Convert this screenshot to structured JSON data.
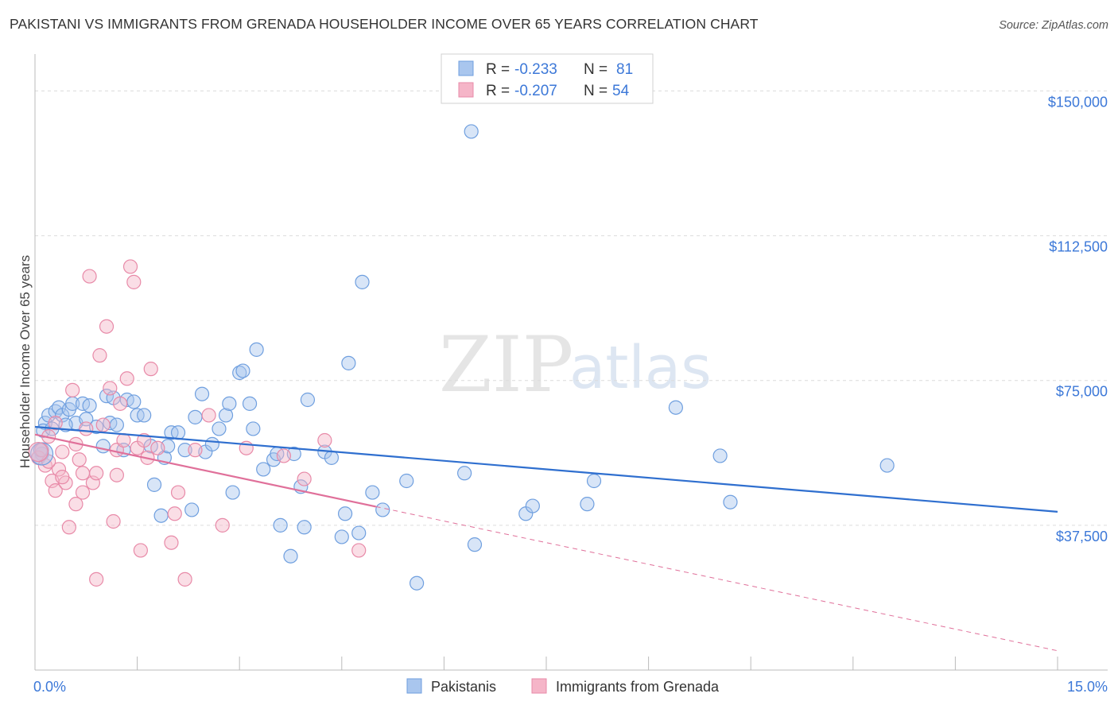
{
  "title": "PAKISTANI VS IMMIGRANTS FROM GRENADA HOUSEHOLDER INCOME OVER 65 YEARS CORRELATION CHART",
  "source": "Source: ZipAtlas.com",
  "watermark": {
    "zip": "ZIP",
    "atlas": "atlas"
  },
  "legend_box": {
    "rows": [
      {
        "r_label": "R =",
        "r_value": "-0.233",
        "n_label": "N =",
        "n_value": "81",
        "color": "#a9c6ee"
      },
      {
        "r_label": "R =",
        "r_value": "-0.207",
        "n_label": "N =",
        "n_value": "54",
        "color": "#f5b5c8"
      }
    ]
  },
  "bottom_legend": [
    {
      "label": "Pakistanis",
      "color": "#a9c6ee"
    },
    {
      "label": "Immigrants from Grenada",
      "color": "#f5b5c8"
    }
  ],
  "chart_data": {
    "type": "scatter",
    "xlabel": "",
    "ylabel": "Householder Income Over 65 years",
    "xlim": [
      0,
      15
    ],
    "ylim": [
      0,
      157500
    ],
    "x_tick_labels": [
      "0.0%",
      "15.0%"
    ],
    "y_ticks": [
      37500,
      75000,
      112500,
      150000
    ],
    "y_tick_labels": [
      "$37,500",
      "$75,000",
      "$112,500",
      "$150,000"
    ],
    "series": [
      {
        "name": "Pakistanis",
        "color": "#a9c6ee",
        "stroke": "#6f9fdf",
        "trend": {
          "x0": 0,
          "y0": 63000,
          "x1": 15,
          "y1": 41000,
          "color": "#2f6fcf",
          "dashed_from": null
        },
        "points": [
          [
            0.1,
            56000
          ],
          [
            0.15,
            64000
          ],
          [
            0.2,
            66000
          ],
          [
            0.3,
            67000
          ],
          [
            0.35,
            68000
          ],
          [
            0.4,
            66000
          ],
          [
            0.5,
            67500
          ],
          [
            0.55,
            69000
          ],
          [
            0.6,
            64000
          ],
          [
            0.7,
            69000
          ],
          [
            0.75,
            65000
          ],
          [
            0.8,
            68500
          ],
          [
            0.9,
            63000
          ],
          [
            1.0,
            58000
          ],
          [
            1.05,
            71000
          ],
          [
            1.1,
            64000
          ],
          [
            1.2,
            63500
          ],
          [
            1.3,
            57000
          ],
          [
            1.35,
            70000
          ],
          [
            1.45,
            69500
          ],
          [
            1.5,
            66000
          ],
          [
            1.6,
            66000
          ],
          [
            1.7,
            58000
          ],
          [
            1.75,
            48000
          ],
          [
            1.85,
            40000
          ],
          [
            1.9,
            55000
          ],
          [
            1.95,
            58000
          ],
          [
            2.0,
            61500
          ],
          [
            2.1,
            61500
          ],
          [
            2.2,
            57000
          ],
          [
            2.3,
            41500
          ],
          [
            2.35,
            65500
          ],
          [
            2.5,
            56500
          ],
          [
            2.6,
            58500
          ],
          [
            2.7,
            62500
          ],
          [
            2.8,
            66000
          ],
          [
            2.85,
            69000
          ],
          [
            2.9,
            46000
          ],
          [
            3.0,
            77000
          ],
          [
            3.05,
            77500
          ],
          [
            3.15,
            69000
          ],
          [
            3.2,
            62500
          ],
          [
            3.25,
            83000
          ],
          [
            3.35,
            52000
          ],
          [
            3.5,
            54500
          ],
          [
            3.55,
            56000
          ],
          [
            3.6,
            37500
          ],
          [
            3.75,
            29500
          ],
          [
            3.8,
            56000
          ],
          [
            3.9,
            47500
          ],
          [
            3.95,
            37000
          ],
          [
            4.0,
            70000
          ],
          [
            4.25,
            56500
          ],
          [
            4.35,
            55000
          ],
          [
            4.5,
            34500
          ],
          [
            4.55,
            40500
          ],
          [
            4.6,
            79500
          ],
          [
            4.75,
            35500
          ],
          [
            4.8,
            100500
          ],
          [
            4.95,
            46000
          ],
          [
            5.1,
            41500
          ],
          [
            5.45,
            49000
          ],
          [
            5.6,
            22500
          ],
          [
            6.3,
            51000
          ],
          [
            6.4,
            139500
          ],
          [
            6.45,
            32500
          ],
          [
            7.2,
            40500
          ],
          [
            7.3,
            42500
          ],
          [
            8.1,
            43000
          ],
          [
            8.2,
            49000
          ],
          [
            9.4,
            68000
          ],
          [
            10.05,
            55500
          ],
          [
            10.2,
            43500
          ],
          [
            12.5,
            53000
          ],
          [
            0.05,
            55000
          ],
          [
            0.08,
            57000
          ],
          [
            0.12,
            62000
          ],
          [
            0.25,
            62500
          ],
          [
            0.45,
            63500
          ],
          [
            1.15,
            70500
          ],
          [
            2.45,
            71500
          ]
        ]
      },
      {
        "name": "Immigrants from Grenada",
        "color": "#f5b5c8",
        "stroke": "#e88aa8",
        "trend": {
          "x0": 0,
          "y0": 61000,
          "x1": 15,
          "y1": 5000,
          "color": "#e0709a",
          "dashed_from": 5
        },
        "points": [
          [
            0.05,
            55000
          ],
          [
            0.1,
            57000
          ],
          [
            0.15,
            53000
          ],
          [
            0.2,
            60500
          ],
          [
            0.25,
            49000
          ],
          [
            0.3,
            46500
          ],
          [
            0.35,
            52000
          ],
          [
            0.4,
            56500
          ],
          [
            0.45,
            48500
          ],
          [
            0.5,
            37000
          ],
          [
            0.55,
            72500
          ],
          [
            0.6,
            43000
          ],
          [
            0.65,
            54500
          ],
          [
            0.7,
            46000
          ],
          [
            0.75,
            62500
          ],
          [
            0.8,
            102000
          ],
          [
            0.85,
            48500
          ],
          [
            0.9,
            51000
          ],
          [
            0.95,
            81500
          ],
          [
            1.0,
            63500
          ],
          [
            1.05,
            89000
          ],
          [
            1.1,
            73000
          ],
          [
            1.15,
            38500
          ],
          [
            1.2,
            57000
          ],
          [
            1.25,
            69000
          ],
          [
            1.3,
            59500
          ],
          [
            1.35,
            75500
          ],
          [
            1.4,
            104500
          ],
          [
            1.45,
            100500
          ],
          [
            1.5,
            57500
          ],
          [
            1.55,
            31000
          ],
          [
            1.6,
            59500
          ],
          [
            1.7,
            78000
          ],
          [
            1.8,
            57500
          ],
          [
            2.0,
            33000
          ],
          [
            2.1,
            46000
          ],
          [
            2.2,
            23500
          ],
          [
            2.35,
            57000
          ],
          [
            2.55,
            66000
          ],
          [
            2.75,
            37500
          ],
          [
            3.1,
            57500
          ],
          [
            3.65,
            55500
          ],
          [
            3.95,
            49500
          ],
          [
            4.25,
            59500
          ],
          [
            4.75,
            31000
          ],
          [
            0.9,
            23500
          ],
          [
            0.6,
            58500
          ],
          [
            0.3,
            64000
          ],
          [
            0.4,
            50000
          ],
          [
            1.2,
            50500
          ],
          [
            2.05,
            40500
          ],
          [
            1.65,
            55000
          ],
          [
            0.2,
            54000
          ],
          [
            0.7,
            51000
          ]
        ]
      }
    ]
  }
}
